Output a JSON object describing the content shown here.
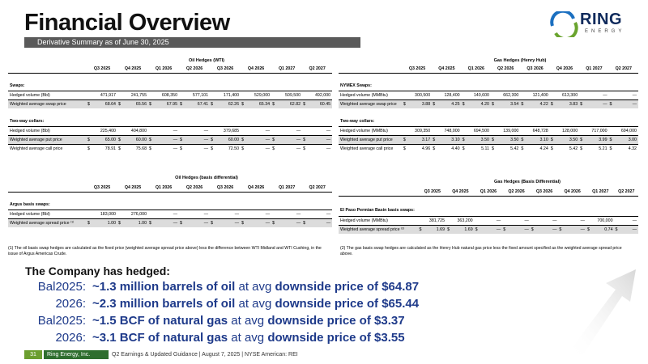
{
  "title": "Financial Overview",
  "subtitle": "Derivative Summary as of  June 30, 2025",
  "logo": {
    "ring": "RING",
    "energy": "ENERGY"
  },
  "oil": {
    "caption": "Oil Hedges (WTI)",
    "headers": [
      "Q3 2025",
      "Q4 2025",
      "Q1 2026",
      "Q2 2026",
      "Q3 2026",
      "Q4 2026",
      "Q1 2027",
      "Q2 2027"
    ],
    "swaps_label": "Swaps:",
    "hv_label": "Hedged volume (Bbl)",
    "swap_vol": [
      "471,917",
      "241,755",
      "608,350",
      "577,101",
      "171,400",
      "529,000",
      "509,500",
      "492,000"
    ],
    "was_label": "Weighted average swap price",
    "swap_price": [
      "68.64",
      "65.56",
      "67.95",
      "67.41",
      "62.26",
      "65.34",
      "62.82",
      "60.45"
    ],
    "collar_label": "Two-way collars:",
    "collar_vol": [
      "225,400",
      "404,800",
      "—",
      "—",
      "379,685",
      "—",
      "—",
      "—"
    ],
    "wput_label": "Weighted average put price",
    "put_price": [
      "65.00",
      "60.00",
      "—",
      "—",
      "60.00",
      "—",
      "—",
      "—"
    ],
    "wcall_label": "Weighted average call price",
    "call_price": [
      "78.91",
      "75.68",
      "—",
      "—",
      "72.50",
      "—",
      "—",
      "—"
    ]
  },
  "oilbasis": {
    "caption": "Oil Hedges (basis differential)",
    "headers": [
      "Q3 2025",
      "Q4 2025",
      "Q1 2026",
      "Q2 2026",
      "Q3 2026",
      "Q4 2026",
      "Q1 2027",
      "Q2 2027"
    ],
    "section": "Argus basis swaps:",
    "hv_label": "Hedged volume (Bbl)",
    "vol": [
      "183,000",
      "276,000",
      "—",
      "—",
      "—",
      "—",
      "—",
      "—"
    ],
    "wsp_label": "Weighted average spread price ⁽¹⁾",
    "price": [
      "1.00",
      "1.00",
      "—",
      "—",
      "—",
      "—",
      "—",
      "—"
    ]
  },
  "gas": {
    "caption": "Gas Hedges (Henry Hub)",
    "headers": [
      "Q3 2025",
      "Q4 2025",
      "Q1 2026",
      "Q2 2026",
      "Q3 2026",
      "Q4 2026",
      "Q1 2027",
      "Q2 2027"
    ],
    "section": "NYMEX Swaps:",
    "hv_label": "Hedged volume (MMBtu)",
    "swap_vol": [
      "300,500",
      "128,400",
      "140,600",
      "662,300",
      "121,400",
      "613,300",
      "—",
      "—"
    ],
    "was_label": "Weighted average swap price",
    "swap_price": [
      "3.88",
      "4.25",
      "4.20",
      "3.54",
      "4.22",
      "3.83",
      "—",
      "—"
    ],
    "collar_label": "Two-way collars:",
    "collar_vol": [
      "309,350",
      "748,000",
      "694,500",
      "139,000",
      "648,728",
      "128,000",
      "717,000",
      "694,000"
    ],
    "wput_label": "Weighted average put price",
    "put_price": [
      "3.17",
      "3.10",
      "3.50",
      "3.50",
      "3.10",
      "3.50",
      "3.99",
      "3.00"
    ],
    "wcall_label": "Weighted average call price",
    "call_price": [
      "4.96",
      "4.40",
      "5.11",
      "5.42",
      "4.24",
      "5.42",
      "5.21",
      "4.32"
    ]
  },
  "gasbasis": {
    "caption": "Gas Hedges (Basis Differential)",
    "headers": [
      "Q3 2025",
      "Q4 2025",
      "Q1 2026",
      "Q2 2026",
      "Q3 2026",
      "Q4 2026",
      "Q1 2027",
      "Q2 2027"
    ],
    "section": "El Paso Permian Basin basis swaps:",
    "hv_label": "Hedged volume (MMBtu)",
    "vol": [
      "381,725",
      "363,200",
      "—",
      "—",
      "—",
      "—",
      "700,000",
      "—"
    ],
    "wsp_label": "Weighted average spread price ⁽²⁾",
    "price": [
      "1.69",
      "1.69",
      "—",
      "—",
      "—",
      "—",
      "0.74",
      "—"
    ]
  },
  "notes": {
    "n1": "(1) The oil basis swap hedges are calculated as the fixed price (weighted average spread price above) less the difference between WTI Midland and WTI Cushing, in the issue of Argus Americas Crude.",
    "n2": "(2) The gas basis swap hedges are calculated as the Henry Hub natural gas price less the fixed amount specified as the weighted average spread price above."
  },
  "hedged": {
    "heading": "The Company has hedged:",
    "lines": [
      {
        "year": "Bal2025:",
        "amt": "~1.3 million barrels of oil",
        "mid": " at avg ",
        "down": "downside price of $64.87"
      },
      {
        "year": "2026:",
        "amt": "~2.3 million barrels of oil",
        "mid": " at avg ",
        "down": "downside price of $65.44"
      },
      {
        "year": "Bal2025:",
        "amt": "~1.5 BCF of natural gas",
        "mid": " at avg ",
        "down": "downside price of $3.37"
      },
      {
        "year": "2026:",
        "amt": "~3.1 BCF of natural gas",
        "mid": " at avg ",
        "down": "downside price of $3.55"
      }
    ]
  },
  "footer": {
    "page": "31",
    "brand": "Ring Energy, Inc.",
    "text": "Q2 Earnings & Updated Guidance | August 7, 2025 | NYSE American: REI"
  },
  "colors": {
    "blue": "#1e3a8a",
    "green": "#2e6e2e"
  }
}
